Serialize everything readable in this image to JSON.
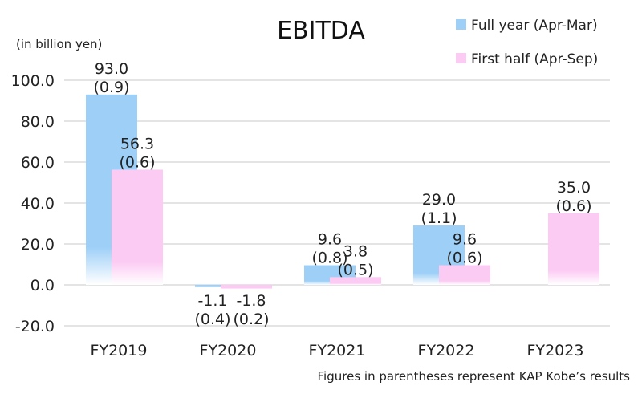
{
  "chart_data": {
    "type": "bar",
    "title": "EBITDA",
    "unit_label": "(in billion yen)",
    "footnote": "Figures in parentheses represent KAP Kobe’s results",
    "categories": [
      "FY2019",
      "FY2020",
      "FY2021",
      "FY2022",
      "FY2023"
    ],
    "ylim": [
      -20,
      100
    ],
    "yticks": [
      -20,
      0,
      20,
      40,
      60,
      80,
      100
    ],
    "ytick_labels": [
      "-20.0",
      "0.0",
      "20.0",
      "40.0",
      "60.0",
      "80.0",
      "100.0"
    ],
    "grid": true,
    "legend_position": "top-right",
    "series": [
      {
        "name": "Full year (Apr-Mar)",
        "color": "#9DCFF7",
        "values": [
          93.0,
          -1.1,
          9.6,
          29.0,
          null
        ],
        "labels": [
          "93.0",
          "-1.1",
          "9.6",
          "29.0",
          ""
        ],
        "kap_kobe_labels": [
          "(0.9)",
          "(0.4)",
          "(0.8)",
          "(1.1)",
          ""
        ]
      },
      {
        "name": "First half (Apr-Sep)",
        "color": "#FCCBF4",
        "values": [
          56.3,
          -1.8,
          3.8,
          9.6,
          35.0
        ],
        "labels": [
          "56.3",
          "-1.8",
          "3.8",
          "9.6",
          "35.0"
        ],
        "kap_kobe_labels": [
          "(0.6)",
          "(0.2)",
          "(0.5)",
          "(0.6)",
          "(0.6)"
        ]
      }
    ]
  }
}
